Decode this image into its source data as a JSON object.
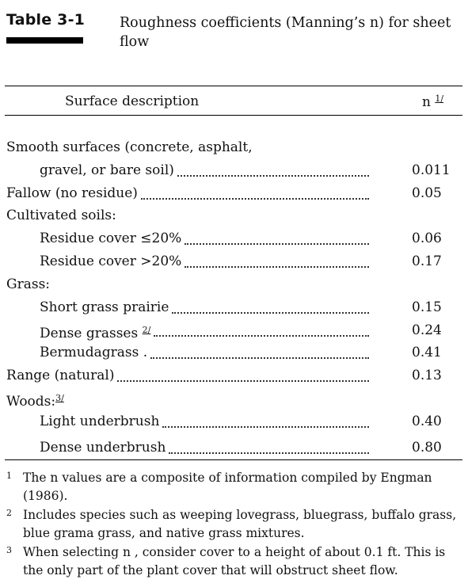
{
  "table": {
    "label": "Table 3-1",
    "title": "Roughness coefficients (Manning’s n) for sheet flow",
    "header": {
      "description": "Surface description",
      "n": "n",
      "n_note": "1/"
    }
  },
  "rows": [
    {
      "desc": "Smooth surfaces (concrete, asphalt,",
      "value": ""
    },
    {
      "desc": "gravel, or bare soil)",
      "value": "0.011"
    },
    {
      "desc": "Fallow (no residue)",
      "value": "0.05"
    },
    {
      "desc": "Cultivated soils:",
      "value": ""
    },
    {
      "desc": "Residue cover ≤20%",
      "value": "0.06"
    },
    {
      "desc": "Residue cover >20%",
      "value": "0.17"
    },
    {
      "desc": "Grass:",
      "value": ""
    },
    {
      "desc": "Short grass prairie",
      "value": "0.15"
    },
    {
      "desc": "Dense grasses",
      "note": "2/",
      "value": "0.24"
    },
    {
      "desc": "Bermudagrass .",
      "value": "0.41"
    },
    {
      "desc": "Range (natural)",
      "value": "0.13"
    },
    {
      "desc": "Woods:",
      "note": "3/",
      "value": ""
    },
    {
      "desc": "Light underbrush",
      "value": "0.40"
    },
    {
      "desc": "Dense underbrush",
      "value": "0.80"
    }
  ],
  "footnotes": [
    {
      "num": "1",
      "text": "The n values are a composite of information compiled by Engman (1986)."
    },
    {
      "num": "2",
      "text": "Includes species such as weeping lovegrass, bluegrass, buffalo grass, blue grama grass, and native grass mixtures."
    },
    {
      "num": "3",
      "text": "When selecting n , consider cover to a height of about 0.1 ft. This is the only part of the plant cover that will obstruct sheet flow."
    }
  ]
}
